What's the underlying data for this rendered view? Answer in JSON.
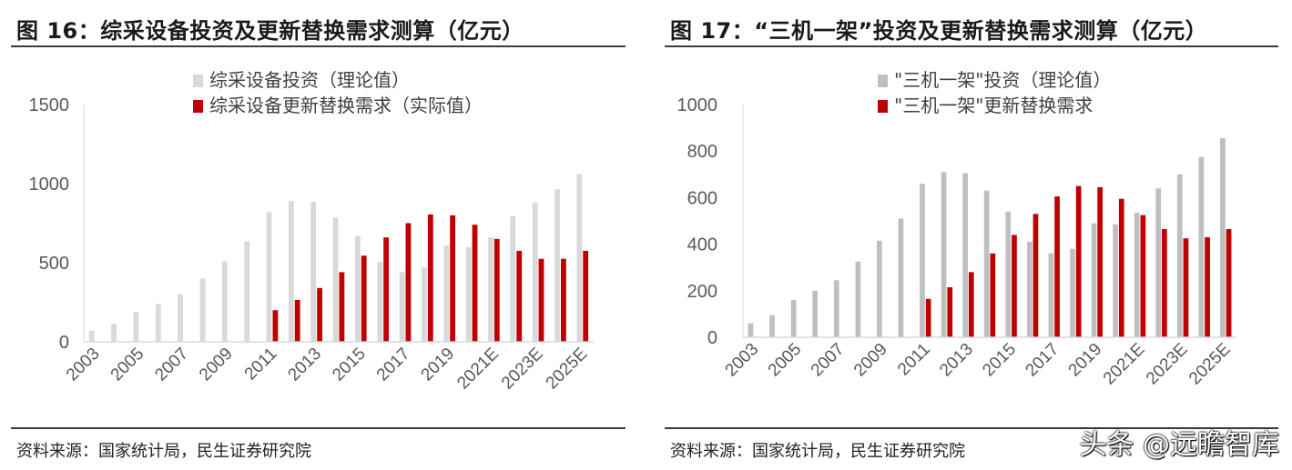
{
  "panels": [
    {
      "title": "图 16：综采设备投资及更新替换需求测算（亿元）",
      "source": "资料来源：国家统计局，民生证券研究院"
    },
    {
      "title": "图 17：“三机一架”投资及更新替换需求测算（亿元）",
      "source": "资料来源：国家统计局，民生证券研究院"
    }
  ],
  "watermark": "头条 @远瞻智库",
  "colors": {
    "series_gray_left": "#d9d9d9",
    "series_gray_right": "#bfbfbf",
    "series_red": "#c00000"
  },
  "chart_data": [
    {
      "type": "bar",
      "categories": [
        "2003",
        "2004",
        "2005",
        "2006",
        "2007",
        "2008",
        "2009",
        "2010",
        "2011",
        "2012",
        "2013",
        "2014",
        "2015",
        "2016",
        "2017",
        "2018",
        "2019",
        "2020",
        "2021E",
        "2022E",
        "2023E",
        "2024E",
        "2025E"
      ],
      "tick_labels": [
        "2003",
        "2005",
        "2007",
        "2009",
        "2011",
        "2013",
        "2015",
        "2017",
        "2019",
        "2021E",
        "2023E",
        "2025E"
      ],
      "y_ticks": [
        "0",
        "500",
        "1000",
        "1500"
      ],
      "ylim": [
        0,
        1500
      ],
      "grid": false,
      "legend_position": "top-center",
      "series": [
        {
          "name": "综采设备投资（理论值）",
          "color": "#d9d9d9",
          "values": [
            70,
            115,
            190,
            240,
            300,
            400,
            510,
            635,
            820,
            890,
            885,
            785,
            670,
            505,
            440,
            470,
            610,
            600,
            660,
            795,
            880,
            965,
            1060
          ]
        },
        {
          "name": "综采设备更新替换需求（实际值）",
          "color": "#c00000",
          "values": [
            null,
            null,
            null,
            null,
            null,
            null,
            null,
            null,
            200,
            265,
            340,
            440,
            545,
            660,
            750,
            805,
            800,
            740,
            650,
            575,
            525,
            525,
            575
          ]
        }
      ]
    },
    {
      "type": "bar",
      "categories": [
        "2003",
        "2004",
        "2005",
        "2006",
        "2007",
        "2008",
        "2009",
        "2010",
        "2011",
        "2012",
        "2013",
        "2014",
        "2015",
        "2016",
        "2017",
        "2018",
        "2019",
        "2020",
        "2021E",
        "2022E",
        "2023E",
        "2024E",
        "2025E"
      ],
      "tick_labels": [
        "2003",
        "2005",
        "2007",
        "2009",
        "2011",
        "2013",
        "2015",
        "2017",
        "2019",
        "2021E",
        "2023E",
        "2025E"
      ],
      "y_ticks": [
        "0",
        "200",
        "400",
        "600",
        "800",
        "1000"
      ],
      "ylim": [
        0,
        1000
      ],
      "grid": false,
      "legend_position": "top-center",
      "series": [
        {
          "name": "\"三机一架\"投资（理论值）",
          "color": "#bfbfbf",
          "values": [
            60,
            95,
            160,
            200,
            245,
            325,
            415,
            510,
            660,
            710,
            705,
            630,
            540,
            410,
            360,
            380,
            490,
            485,
            535,
            640,
            700,
            775,
            855
          ]
        },
        {
          "name": "\"三机一架\"更新替换需求",
          "color": "#c00000",
          "values": [
            null,
            null,
            null,
            null,
            null,
            null,
            null,
            null,
            165,
            215,
            280,
            360,
            440,
            530,
            605,
            650,
            645,
            595,
            525,
            465,
            425,
            430,
            465
          ]
        }
      ]
    }
  ]
}
